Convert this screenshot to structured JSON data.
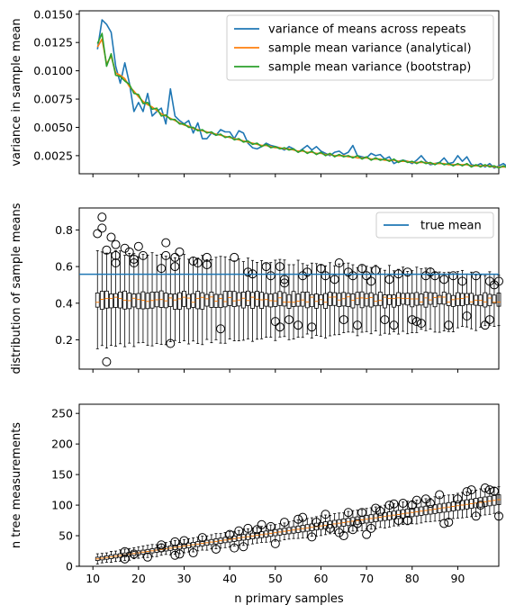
{
  "chart_data": [
    {
      "type": "line",
      "ylabel": "variance in sample mean",
      "xlim": [
        7,
        99
      ],
      "ylim": [
        0.0009,
        0.0153
      ],
      "yticks": [
        "0.0025",
        "0.0050",
        "0.0075",
        "0.0100",
        "0.0125",
        "0.0150"
      ],
      "legend": "top-right",
      "x_start": 11,
      "x_end": 98,
      "series": [
        {
          "name": "variance of means across repeats",
          "color": "#1f77b4",
          "values": [
            0.0119,
            0.0145,
            0.0141,
            0.0134,
            0.0104,
            0.0089,
            0.0107,
            0.0089,
            0.0064,
            0.0072,
            0.0064,
            0.008,
            0.006,
            0.0064,
            0.0067,
            0.0053,
            0.0084,
            0.006,
            0.0056,
            0.0053,
            0.0056,
            0.0045,
            0.0054,
            0.004,
            0.004,
            0.0045,
            0.0043,
            0.0048,
            0.0046,
            0.0046,
            0.004,
            0.0047,
            0.0045,
            0.0036,
            0.0032,
            0.0031,
            0.0033,
            0.0036,
            0.0034,
            0.0033,
            0.0032,
            0.003,
            0.0033,
            0.0031,
            0.0028,
            0.0031,
            0.0034,
            0.003,
            0.0033,
            0.0029,
            0.0027,
            0.0025,
            0.0028,
            0.0029,
            0.0026,
            0.0028,
            0.0034,
            0.0025,
            0.0024,
            0.0023,
            0.0027,
            0.0025,
            0.0026,
            0.0022,
            0.0024,
            0.0018,
            0.002,
            0.0021,
            0.002,
            0.0018,
            0.0021,
            0.0025,
            0.002,
            0.0017,
            0.0018,
            0.0019,
            0.0023,
            0.0018,
            0.0019,
            0.0025,
            0.002,
            0.0024,
            0.0017,
            0.0016,
            0.0018,
            0.0015,
            0.0018,
            0.0014,
            0.0016,
            0.0018,
            0.0015,
            0.0014,
            0.0015,
            0.0016,
            0.0013,
            0.0016,
            0.0014,
            0.0013
          ]
        },
        {
          "name": "sample mean variance (analytical)",
          "color": "#ff7f0e",
          "values": [
            0.0121,
            0.0128,
            0.0106,
            0.0113,
            0.0098,
            0.0096,
            0.0093,
            0.0086,
            0.0082,
            0.0077,
            0.0073,
            0.007,
            0.0068,
            0.0065,
            0.0062,
            0.006,
            0.0058,
            0.0056,
            0.0054,
            0.0052,
            0.0051,
            0.0049,
            0.0048,
            0.0047,
            0.0046,
            0.0045,
            0.0044,
            0.0043,
            0.0042,
            0.0041,
            0.004,
            0.0039,
            0.0038,
            0.0037,
            0.0036,
            0.0035,
            0.0034,
            0.0034,
            0.0033,
            0.0032,
            0.0032,
            0.0031,
            0.0031,
            0.003,
            0.0029,
            0.0029,
            0.0028,
            0.0028,
            0.0027,
            0.0027,
            0.0026,
            0.0026,
            0.0025,
            0.0025,
            0.0025,
            0.0024,
            0.0024,
            0.0023,
            0.0023,
            0.0023,
            0.0022,
            0.0022,
            0.0022,
            0.0021,
            0.0021,
            0.0021,
            0.002,
            0.002,
            0.002,
            0.0019,
            0.0019,
            0.0019,
            0.0019,
            0.0018,
            0.0018,
            0.0018,
            0.0018,
            0.0017,
            0.0017,
            0.0017,
            0.0017,
            0.0017,
            0.0016,
            0.0016,
            0.0016,
            0.0016,
            0.0016,
            0.0015,
            0.0015,
            0.0015,
            0.0015,
            0.0015,
            0.0015,
            0.0014,
            0.0014,
            0.0014,
            0.0014,
            0.0014
          ]
        },
        {
          "name": "sample mean variance (bootstrap)",
          "color": "#2ca02c",
          "values": [
            0.0124,
            0.0133,
            0.0104,
            0.0115,
            0.0096,
            0.0095,
            0.0091,
            0.0088,
            0.008,
            0.0079,
            0.0071,
            0.0072,
            0.0066,
            0.0067,
            0.006,
            0.0061,
            0.0057,
            0.0057,
            0.0053,
            0.0053,
            0.005,
            0.005,
            0.0047,
            0.0048,
            0.0045,
            0.0046,
            0.0043,
            0.0044,
            0.0041,
            0.0042,
            0.0039,
            0.004,
            0.0037,
            0.0038,
            0.0035,
            0.0036,
            0.0033,
            0.0035,
            0.0032,
            0.0033,
            0.0031,
            0.0032,
            0.003,
            0.0031,
            0.0028,
            0.003,
            0.0027,
            0.0029,
            0.0026,
            0.0028,
            0.0025,
            0.0027,
            0.0024,
            0.0026,
            0.0024,
            0.0025,
            0.0023,
            0.0025,
            0.0022,
            0.0024,
            0.0021,
            0.0023,
            0.0021,
            0.0022,
            0.002,
            0.0022,
            0.0019,
            0.0021,
            0.0019,
            0.002,
            0.0018,
            0.002,
            0.0018,
            0.0019,
            0.0017,
            0.0019,
            0.0017,
            0.0018,
            0.0016,
            0.0018,
            0.0016,
            0.0018,
            0.0015,
            0.0017,
            0.0015,
            0.0017,
            0.0015,
            0.0016,
            0.0014,
            0.0016,
            0.0014,
            0.0016,
            0.0014,
            0.0015,
            0.0013,
            0.0015,
            0.0013,
            0.0015
          ]
        }
      ]
    },
    {
      "type": "boxplot",
      "ylabel": "distribution of sample means",
      "xlim": [
        7,
        99
      ],
      "ylim": [
        0.04,
        0.92
      ],
      "yticks": [
        "0.2",
        "0.4",
        "0.6",
        "0.8"
      ],
      "legend": "top-right",
      "reference_line": {
        "name": "true mean",
        "value": 0.558,
        "color": "#1f77b4"
      },
      "box_summary": {
        "median": 0.42,
        "q1": 0.37,
        "q3": 0.46,
        "whisker_low_start": 0.16,
        "whisker_low_end": 0.27,
        "whisker_high_start": 0.68,
        "whisker_high_end": 0.56
      },
      "outliers": [
        {
          "x": 11,
          "y": 0.78
        },
        {
          "x": 12,
          "y": 0.87
        },
        {
          "x": 12,
          "y": 0.81
        },
        {
          "x": 13,
          "y": 0.69
        },
        {
          "x": 13,
          "y": 0.08
        },
        {
          "x": 14,
          "y": 0.76
        },
        {
          "x": 15,
          "y": 0.72
        },
        {
          "x": 15,
          "y": 0.66
        },
        {
          "x": 15,
          "y": 0.62
        },
        {
          "x": 17,
          "y": 0.7
        },
        {
          "x": 18,
          "y": 0.68
        },
        {
          "x": 19,
          "y": 0.64
        },
        {
          "x": 19,
          "y": 0.62
        },
        {
          "x": 20,
          "y": 0.71
        },
        {
          "x": 21,
          "y": 0.66
        },
        {
          "x": 25,
          "y": 0.59
        },
        {
          "x": 26,
          "y": 0.73
        },
        {
          "x": 26,
          "y": 0.66
        },
        {
          "x": 27,
          "y": 0.18
        },
        {
          "x": 28,
          "y": 0.65
        },
        {
          "x": 28,
          "y": 0.6
        },
        {
          "x": 29,
          "y": 0.68
        },
        {
          "x": 32,
          "y": 0.63
        },
        {
          "x": 33,
          "y": 0.62
        },
        {
          "x": 35,
          "y": 0.65
        },
        {
          "x": 35,
          "y": 0.61
        },
        {
          "x": 38,
          "y": 0.26
        },
        {
          "x": 41,
          "y": 0.65
        },
        {
          "x": 44,
          "y": 0.57
        },
        {
          "x": 45,
          "y": 0.56
        },
        {
          "x": 48,
          "y": 0.6
        },
        {
          "x": 49,
          "y": 0.55
        },
        {
          "x": 50,
          "y": 0.3
        },
        {
          "x": 51,
          "y": 0.27
        },
        {
          "x": 51,
          "y": 0.6
        },
        {
          "x": 52,
          "y": 0.53
        },
        {
          "x": 52,
          "y": 0.51
        },
        {
          "x": 53,
          "y": 0.31
        },
        {
          "x": 55,
          "y": 0.28
        },
        {
          "x": 56,
          "y": 0.55
        },
        {
          "x": 57,
          "y": 0.57
        },
        {
          "x": 58,
          "y": 0.27
        },
        {
          "x": 60,
          "y": 0.59
        },
        {
          "x": 61,
          "y": 0.55
        },
        {
          "x": 63,
          "y": 0.53
        },
        {
          "x": 64,
          "y": 0.62
        },
        {
          "x": 65,
          "y": 0.31
        },
        {
          "x": 66,
          "y": 0.57
        },
        {
          "x": 67,
          "y": 0.55
        },
        {
          "x": 68,
          "y": 0.28
        },
        {
          "x": 69,
          "y": 0.59
        },
        {
          "x": 70,
          "y": 0.55
        },
        {
          "x": 71,
          "y": 0.52
        },
        {
          "x": 72,
          "y": 0.58
        },
        {
          "x": 74,
          "y": 0.31
        },
        {
          "x": 75,
          "y": 0.53
        },
        {
          "x": 76,
          "y": 0.28
        },
        {
          "x": 77,
          "y": 0.56
        },
        {
          "x": 79,
          "y": 0.57
        },
        {
          "x": 80,
          "y": 0.31
        },
        {
          "x": 81,
          "y": 0.3
        },
        {
          "x": 82,
          "y": 0.29
        },
        {
          "x": 83,
          "y": 0.55
        },
        {
          "x": 84,
          "y": 0.57
        },
        {
          "x": 85,
          "y": 0.55
        },
        {
          "x": 87,
          "y": 0.53
        },
        {
          "x": 88,
          "y": 0.28
        },
        {
          "x": 89,
          "y": 0.55
        },
        {
          "x": 91,
          "y": 0.52
        },
        {
          "x": 92,
          "y": 0.33
        },
        {
          "x": 94,
          "y": 0.55
        },
        {
          "x": 96,
          "y": 0.28
        },
        {
          "x": 97,
          "y": 0.31
        },
        {
          "x": 97,
          "y": 0.52
        },
        {
          "x": 98,
          "y": 0.5
        },
        {
          "x": 99,
          "y": 0.52
        }
      ]
    },
    {
      "type": "boxplot",
      "xlabel": "n primary samples",
      "ylabel": "n tree measurements",
      "xlim": [
        7,
        99
      ],
      "ylim": [
        0,
        265
      ],
      "xticks": [
        "10",
        "20",
        "30",
        "40",
        "50",
        "60",
        "70",
        "80",
        "90"
      ],
      "yticks": [
        "0",
        "50",
        "100",
        "150",
        "200",
        "250"
      ],
      "median_relation": "median ≈ 1.1 × n primary samples",
      "outliers": [
        {
          "x": 17,
          "y": 24
        },
        {
          "x": 17,
          "y": 12
        },
        {
          "x": 19,
          "y": 20
        },
        {
          "x": 22,
          "y": 15
        },
        {
          "x": 25,
          "y": 35
        },
        {
          "x": 25,
          "y": 30
        },
        {
          "x": 28,
          "y": 18
        },
        {
          "x": 28,
          "y": 40
        },
        {
          "x": 29,
          "y": 20
        },
        {
          "x": 30,
          "y": 42
        },
        {
          "x": 32,
          "y": 22
        },
        {
          "x": 34,
          "y": 47
        },
        {
          "x": 37,
          "y": 28
        },
        {
          "x": 40,
          "y": 52
        },
        {
          "x": 41,
          "y": 30
        },
        {
          "x": 42,
          "y": 58
        },
        {
          "x": 43,
          "y": 32
        },
        {
          "x": 44,
          "y": 62
        },
        {
          "x": 46,
          "y": 60
        },
        {
          "x": 47,
          "y": 68
        },
        {
          "x": 49,
          "y": 65
        },
        {
          "x": 50,
          "y": 37
        },
        {
          "x": 52,
          "y": 72
        },
        {
          "x": 55,
          "y": 77
        },
        {
          "x": 56,
          "y": 80
        },
        {
          "x": 58,
          "y": 48
        },
        {
          "x": 59,
          "y": 72
        },
        {
          "x": 61,
          "y": 85
        },
        {
          "x": 62,
          "y": 62
        },
        {
          "x": 64,
          "y": 55
        },
        {
          "x": 65,
          "y": 50
        },
        {
          "x": 66,
          "y": 88
        },
        {
          "x": 67,
          "y": 60
        },
        {
          "x": 68,
          "y": 70
        },
        {
          "x": 69,
          "y": 88
        },
        {
          "x": 70,
          "y": 52
        },
        {
          "x": 71,
          "y": 62
        },
        {
          "x": 72,
          "y": 95
        },
        {
          "x": 73,
          "y": 90
        },
        {
          "x": 75,
          "y": 100
        },
        {
          "x": 76,
          "y": 102
        },
        {
          "x": 77,
          "y": 75
        },
        {
          "x": 78,
          "y": 103
        },
        {
          "x": 79,
          "y": 75
        },
        {
          "x": 80,
          "y": 100
        },
        {
          "x": 81,
          "y": 108
        },
        {
          "x": 83,
          "y": 110
        },
        {
          "x": 84,
          "y": 103
        },
        {
          "x": 86,
          "y": 117
        },
        {
          "x": 87,
          "y": 70
        },
        {
          "x": 88,
          "y": 72
        },
        {
          "x": 90,
          "y": 110
        },
        {
          "x": 92,
          "y": 122
        },
        {
          "x": 93,
          "y": 125
        },
        {
          "x": 94,
          "y": 82
        },
        {
          "x": 95,
          "y": 100
        },
        {
          "x": 96,
          "y": 128
        },
        {
          "x": 97,
          "y": 125
        },
        {
          "x": 98,
          "y": 123
        },
        {
          "x": 99,
          "y": 82
        }
      ]
    }
  ]
}
